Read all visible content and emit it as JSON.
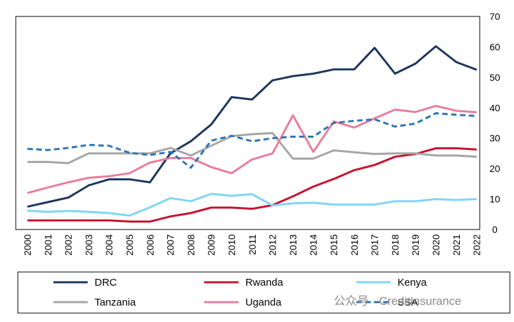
{
  "chart_data": {
    "type": "line",
    "x": [
      2000,
      2001,
      2002,
      2003,
      2004,
      2005,
      2006,
      2007,
      2008,
      2009,
      2010,
      2011,
      2012,
      2013,
      2014,
      2015,
      2016,
      2017,
      2018,
      2019,
      2020,
      2021,
      2022
    ],
    "ylim": [
      0,
      70
    ],
    "yticks": [
      0,
      10,
      20,
      30,
      40,
      50,
      60,
      70
    ],
    "y_axis_position": "right",
    "grid": false,
    "legend_placement": "bottom",
    "series": [
      {
        "name": "DRC",
        "color": "#1b365d",
        "dash": false,
        "values": [
          7.5,
          9,
          10.5,
          14.5,
          16.5,
          16.5,
          15.5,
          25,
          29,
          34.5,
          43.5,
          42.7,
          49,
          50.4,
          51.2,
          52.6,
          52.6,
          59.7,
          51.2,
          54.5,
          60.2,
          55,
          52.5
        ]
      },
      {
        "name": "Rwanda",
        "color": "#c8102e",
        "dash": false,
        "values": [
          3,
          3,
          3,
          3,
          3,
          2.6,
          2.6,
          4.3,
          5.4,
          7.2,
          7.2,
          6.8,
          8,
          10.9,
          14.1,
          16.6,
          19.5,
          21.2,
          23.9,
          24.8,
          26.7,
          26.7,
          26.3
        ]
      },
      {
        "name": "Kenya",
        "color": "#7dd6f6",
        "dash": false,
        "values": [
          6.2,
          5.8,
          6.1,
          5.8,
          5.4,
          4.6,
          7.3,
          10.3,
          9.3,
          11.7,
          11.1,
          11.6,
          7.9,
          8.6,
          8.8,
          8.2,
          8.2,
          8.2,
          9.3,
          9.3,
          10,
          9.7,
          10
        ]
      },
      {
        "name": "Tanzania",
        "color": "#a5a5a5",
        "dash": false,
        "values": [
          22.2,
          22.2,
          21.8,
          25,
          25,
          25,
          25,
          26.8,
          24.3,
          27.5,
          30.7,
          31.3,
          31.7,
          23.3,
          23.3,
          26,
          25.4,
          24.8,
          25,
          25,
          24.3,
          24.3,
          23.9
        ]
      },
      {
        "name": "Uganda",
        "color": "#e87c9a",
        "dash": false,
        "values": [
          12,
          13.8,
          15.5,
          17,
          17.5,
          18.5,
          22,
          23.5,
          23.5,
          20.5,
          18.5,
          23,
          25,
          37.5,
          25.5,
          35.5,
          33.5,
          36.5,
          39.4,
          38.6,
          40.6,
          39,
          38.5
        ]
      },
      {
        "name": "SSA",
        "color": "#2e75b6",
        "dash": true,
        "values": [
          26.5,
          26.1,
          26.8,
          27.8,
          27.5,
          25.2,
          24.5,
          25.5,
          20.3,
          29.2,
          30.8,
          29,
          30,
          30.5,
          30.5,
          35,
          35.7,
          36.2,
          33.8,
          34.8,
          38.2,
          37.7,
          37.3
        ]
      }
    ]
  },
  "watermark": {
    "text": "公众号 · CreditInsurance"
  }
}
